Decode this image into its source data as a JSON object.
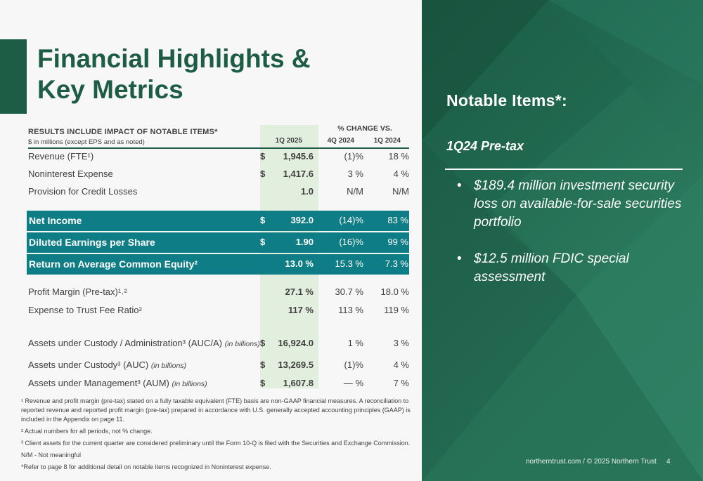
{
  "title": {
    "line1": "Financial Highlights &",
    "line2": "Key Metrics"
  },
  "table": {
    "header": {
      "notable": "RESULTS INCLUDE IMPACT OF NOTABLE ITEMS*",
      "units": "$ in millions (except EPS and as noted)",
      "change_vs": "% CHANGE VS.",
      "col_current": "1Q 2025",
      "col_prev1": "4Q 2024",
      "col_prev2": "1Q 2024"
    },
    "rows": [
      {
        "label": "Revenue (FTE¹)",
        "dollar": "$",
        "current": "1,945.6",
        "c1": "(1)%",
        "c2": "18 %"
      },
      {
        "label": "Noninterest Expense",
        "dollar": "$",
        "current": "1,417.6",
        "c1": "3 %",
        "c2": "4 %"
      },
      {
        "label": "Provision for Credit Losses",
        "dollar": "",
        "current": "1.0",
        "c1": "N/M",
        "c2": "N/M"
      },
      {
        "label": "Net Income",
        "dollar": "$",
        "current": "392.0",
        "c1": "(14)%",
        "c2": "83 %"
      },
      {
        "label": "Diluted Earnings per Share",
        "dollar": "$",
        "current": "1.90",
        "c1": "(16)%",
        "c2": "99 %"
      },
      {
        "label": "Return on Average Common Equity²",
        "dollar": "",
        "current": "13.0 %",
        "c1": "15.3 %",
        "c2": "7.3 %"
      },
      {
        "label": "Profit Margin (Pre-tax)¹˒²",
        "dollar": "",
        "current": "27.1 %",
        "c1": "30.7 %",
        "c2": "18.0 %"
      },
      {
        "label": "Expense to Trust Fee Ratio²",
        "dollar": "",
        "current": "117 %",
        "c1": "113 %",
        "c2": "119 %"
      },
      {
        "label": "Assets under Custody / Administration³ (AUC/A)",
        "note": "(in billions)",
        "dollar": "$",
        "current": "16,924.0",
        "c1": "1 %",
        "c2": "3 %"
      },
      {
        "label": "Assets under Custody³ (AUC)",
        "note": "(in billions)",
        "dollar": "$",
        "current": "13,269.5",
        "c1": "(1)%",
        "c2": "4 %"
      },
      {
        "label": "Assets under Management³ (AUM)",
        "note": "(in billions)",
        "dollar": "$",
        "current": "1,607.8",
        "c1": "— %",
        "c2": "7 %"
      }
    ]
  },
  "footnotes": [
    "¹ Revenue and profit margin (pre-tax) stated on a fully taxable equivalent (FTE) basis are non-GAAP financial measures. A reconciliation to reported revenue and reported profit margin (pre-tax) prepared in accordance with U.S. generally accepted accounting principles (GAAP) is included in the Appendix on page 11.",
    "² Actual numbers for all periods, not % change.",
    "³ Client assets for the current quarter are considered preliminary until the Form 10-Q is filed with the Securities and Exchange Commission.",
    "N/M - Not meaningful",
    "*Refer to page 8 for additional detail on notable items recognized in Noninterest expense."
  ],
  "notable": {
    "title": "Notable Items*:",
    "subtitle": "1Q24 Pre-tax",
    "bullet_glyph": "•",
    "bullets": [
      "$189.4 million  investment security loss on available-for-sale securities portfolio",
      "$12.5 million FDIC special assessment"
    ]
  },
  "footer": {
    "text": "northerntrust.com / © 2025 Northern Trust",
    "page": "4"
  },
  "colors": {
    "brand_green": "#1d5c45",
    "band_teal": "#0f7d86",
    "highlight_col": "#e3efde"
  }
}
